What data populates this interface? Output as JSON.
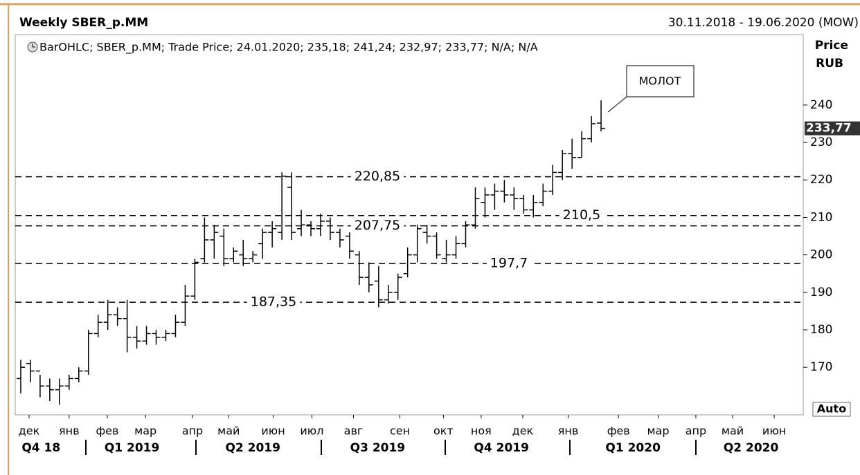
{
  "chart_data": {
    "type": "ohlc",
    "title": "Weekly SBER_p.MM",
    "subtitle": "30.11.2018 - 19.06.2020 (MOW)",
    "legend_text": "BarOHLC; SBER_p.MM; Trade Price; 24.01.2020; 235,18; 241,24; 232,97; 233,77; N/A; N/A",
    "y_axis_label": [
      "Price",
      "RUB"
    ],
    "scale_mode": "Auto",
    "close_label": "233,77",
    "annotation": "МОЛОТ",
    "color": "#000000",
    "categories": [
      null,
      null,
      null,
      null,
      null,
      null,
      null,
      null,
      null,
      null,
      null,
      null,
      null,
      null,
      null,
      null,
      null,
      null,
      null,
      null,
      null,
      null,
      null,
      null,
      null,
      null,
      null,
      null,
      null,
      null,
      null,
      null,
      null,
      null,
      null,
      null,
      null,
      null,
      null,
      null,
      null,
      null,
      null,
      null,
      null,
      null,
      null,
      null,
      null,
      null,
      null,
      null,
      null,
      null,
      null,
      null,
      null,
      null,
      null,
      null,
      null
    ],
    "series": {
      "open": [
        167,
        171,
        169,
        165,
        164,
        165,
        167,
        169,
        179,
        182,
        184,
        183,
        178,
        177,
        179,
        178,
        179,
        182,
        189,
        199,
        204,
        205,
        199,
        200,
        199,
        203,
        206,
        206,
        218,
        207,
        208,
        207,
        209,
        206,
        205,
        200,
        194,
        193,
        188,
        190,
        195,
        200,
        206,
        205,
        199,
        200,
        203,
        208,
        214,
        216,
        217,
        216,
        215,
        212,
        214,
        217,
        222,
        227,
        226,
        231,
        235.18
      ],
      "high": [
        172,
        172,
        168,
        167,
        167,
        168,
        170,
        180,
        184,
        188,
        186,
        188,
        181,
        181,
        180,
        180,
        184,
        192,
        199,
        210,
        208,
        207,
        202,
        204,
        201,
        207,
        209,
        222,
        222,
        212,
        209,
        211,
        210,
        207,
        206,
        201,
        198,
        197,
        192,
        195,
        202,
        208,
        208,
        206,
        204,
        205,
        209,
        218,
        218,
        219,
        220,
        218,
        216,
        216,
        219,
        224,
        228,
        231,
        233,
        237,
        241.24
      ],
      "low": [
        163,
        166,
        162,
        161,
        160,
        164,
        166,
        168,
        178,
        180,
        181,
        174,
        175,
        176,
        176,
        177,
        178,
        181,
        188,
        198,
        199,
        197,
        198,
        197,
        198,
        199,
        202,
        204,
        204,
        205,
        205,
        205,
        204,
        202,
        199,
        192,
        190,
        186,
        187,
        188,
        194,
        198,
        203,
        199,
        198,
        199,
        202,
        207,
        210,
        212,
        214,
        212,
        211,
        210,
        213,
        216,
        220,
        223,
        226,
        230,
        232.97
      ],
      "close": [
        170,
        169,
        165,
        164,
        165,
        167,
        169,
        179,
        182,
        184,
        183,
        178,
        177,
        179,
        178,
        179,
        182,
        189,
        198,
        204,
        206,
        199,
        201,
        199,
        200,
        206,
        207,
        221,
        206,
        208,
        207,
        209,
        206,
        204,
        201,
        194,
        192,
        188,
        190,
        194,
        200,
        207,
        205,
        200,
        200,
        203,
        208,
        215,
        216,
        217,
        216,
        215,
        212,
        214,
        217,
        222,
        227,
        226,
        231,
        235,
        233.77
      ]
    },
    "xlim": [
      -0.57,
      80.9
    ],
    "xticks": [
      {
        "value": 0.86,
        "label": "дек"
      },
      {
        "value": 5.0,
        "label": "янв"
      },
      {
        "value": 8.95,
        "label": "фев"
      },
      {
        "value": 12.9,
        "label": "мар"
      },
      {
        "value": 17.75,
        "label": "апр"
      },
      {
        "value": 21.5,
        "label": "май"
      },
      {
        "value": 26.1,
        "label": "июн"
      },
      {
        "value": 30.1,
        "label": "июл"
      },
      {
        "value": 34.4,
        "label": "авг"
      },
      {
        "value": 39.2,
        "label": "сен"
      },
      {
        "value": 43.7,
        "label": "окт"
      },
      {
        "value": 47.6,
        "label": "ноя"
      },
      {
        "value": 51.9,
        "label": "дек"
      },
      {
        "value": 56.6,
        "label": "янв"
      },
      {
        "value": 61.8,
        "label": "фев"
      },
      {
        "value": 65.9,
        "label": "мар"
      },
      {
        "value": 69.8,
        "label": "апр"
      },
      {
        "value": 73.6,
        "label": "май"
      },
      {
        "value": 77.9,
        "label": "июн"
      }
    ],
    "quarter_ticks": [
      {
        "value": 2.1,
        "label": "Q4 18"
      },
      {
        "value": 11.5,
        "label": "Q1 2019"
      },
      {
        "value": 24.0,
        "label": "Q2 2019"
      },
      {
        "value": 36.9,
        "label": "Q3 2019"
      },
      {
        "value": 49.7,
        "label": "Q4 2019"
      },
      {
        "value": 63.3,
        "label": "Q1 2020"
      },
      {
        "value": 75.5,
        "label": "Q2 2020"
      }
    ],
    "ylim": [
      157.3,
      258.8
    ],
    "yticks": [
      170,
      180,
      190,
      200,
      210,
      220,
      230,
      240
    ],
    "levels": [
      {
        "value": 220.85,
        "label": "220,85"
      },
      {
        "value": 210.5,
        "label": "210,5"
      },
      {
        "value": 207.75,
        "label": "207,75"
      },
      {
        "value": 197.7,
        "label": "197,7"
      },
      {
        "value": 187.35,
        "label": "187,35"
      }
    ]
  }
}
